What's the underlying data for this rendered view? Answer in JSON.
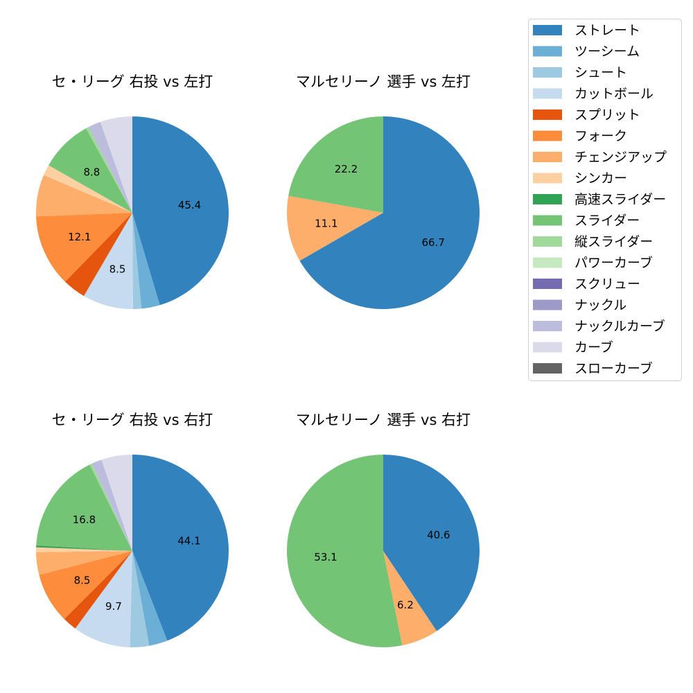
{
  "legend": [
    {
      "name": "ストレート",
      "color": "#3182bd"
    },
    {
      "name": "ツーシーム",
      "color": "#6baed6"
    },
    {
      "name": "シュート",
      "color": "#9ecae1"
    },
    {
      "name": "カットボール",
      "color": "#c6dbef"
    },
    {
      "name": "スプリット",
      "color": "#e6550d"
    },
    {
      "name": "フォーク",
      "color": "#fd8d3c"
    },
    {
      "name": "チェンジアップ",
      "color": "#fdae6b"
    },
    {
      "name": "シンカー",
      "color": "#fdd0a2"
    },
    {
      "name": "高速スライダー",
      "color": "#31a354"
    },
    {
      "name": "スライダー",
      "color": "#74c476"
    },
    {
      "name": "縦スライダー",
      "color": "#a1d99b"
    },
    {
      "name": "パワーカーブ",
      "color": "#c7e9c0"
    },
    {
      "name": "スクリュー",
      "color": "#756bb1"
    },
    {
      "name": "ナックル",
      "color": "#9e9ac8"
    },
    {
      "name": "ナックルカーブ",
      "color": "#bcbddc"
    },
    {
      "name": "カーブ",
      "color": "#dadaeb"
    },
    {
      "name": "スローカーブ",
      "color": "#636363"
    }
  ],
  "chart_data": [
    {
      "type": "pie",
      "title": "セ・リーグ 右投 vs 左打",
      "start_angle": 90,
      "direction": "clockwise",
      "slices": [
        {
          "name": "ストレート",
          "value": 45.4,
          "label": "45.4"
        },
        {
          "name": "ツーシーム",
          "value": 3.1
        },
        {
          "name": "シュート",
          "value": 1.4
        },
        {
          "name": "カットボール",
          "value": 8.5,
          "label": "8.5"
        },
        {
          "name": "スプリット",
          "value": 3.9
        },
        {
          "name": "フォーク",
          "value": 12.1,
          "label": "12.1"
        },
        {
          "name": "チェンジアップ",
          "value": 7.0
        },
        {
          "name": "シンカー",
          "value": 1.8
        },
        {
          "name": "スライダー",
          "value": 8.8,
          "label": "8.8"
        },
        {
          "name": "縦スライダー",
          "value": 0.5
        },
        {
          "name": "ナックルカーブ",
          "value": 2.1
        },
        {
          "name": "カーブ",
          "value": 5.4
        }
      ]
    },
    {
      "type": "pie",
      "title": "マルセリーノ 選手 vs 左打",
      "start_angle": 90,
      "direction": "clockwise",
      "slices": [
        {
          "name": "ストレート",
          "value": 66.7,
          "label": "66.7"
        },
        {
          "name": "チェンジアップ",
          "value": 11.1,
          "label": "11.1"
        },
        {
          "name": "スライダー",
          "value": 22.2,
          "label": "22.2"
        }
      ]
    },
    {
      "type": "pie",
      "title": "セ・リーグ 右投 vs 右打",
      "start_angle": 90,
      "direction": "clockwise",
      "slices": [
        {
          "name": "ストレート",
          "value": 44.1,
          "label": "44.1"
        },
        {
          "name": "ツーシーム",
          "value": 3.1
        },
        {
          "name": "シュート",
          "value": 3.2
        },
        {
          "name": "カットボール",
          "value": 9.7,
          "label": "9.7"
        },
        {
          "name": "スプリット",
          "value": 2.4
        },
        {
          "name": "フォーク",
          "value": 8.5,
          "label": "8.5"
        },
        {
          "name": "チェンジアップ",
          "value": 3.8
        },
        {
          "name": "シンカー",
          "value": 0.8
        },
        {
          "name": "高速スライダー",
          "value": 0.3
        },
        {
          "name": "スライダー",
          "value": 16.8,
          "label": "16.8"
        },
        {
          "name": "縦スライダー",
          "value": 0.4
        },
        {
          "name": "ナックルカーブ",
          "value": 1.7
        },
        {
          "name": "カーブ",
          "value": 5.2
        }
      ]
    },
    {
      "type": "pie",
      "title": "マルセリーノ 選手 vs 右打",
      "start_angle": 90,
      "direction": "clockwise",
      "slices": [
        {
          "name": "ストレート",
          "value": 40.6,
          "label": "40.6"
        },
        {
          "name": "チェンジアップ",
          "value": 6.2,
          "label": "6.2"
        },
        {
          "name": "スライダー",
          "value": 53.1,
          "label": "53.1"
        }
      ]
    }
  ]
}
